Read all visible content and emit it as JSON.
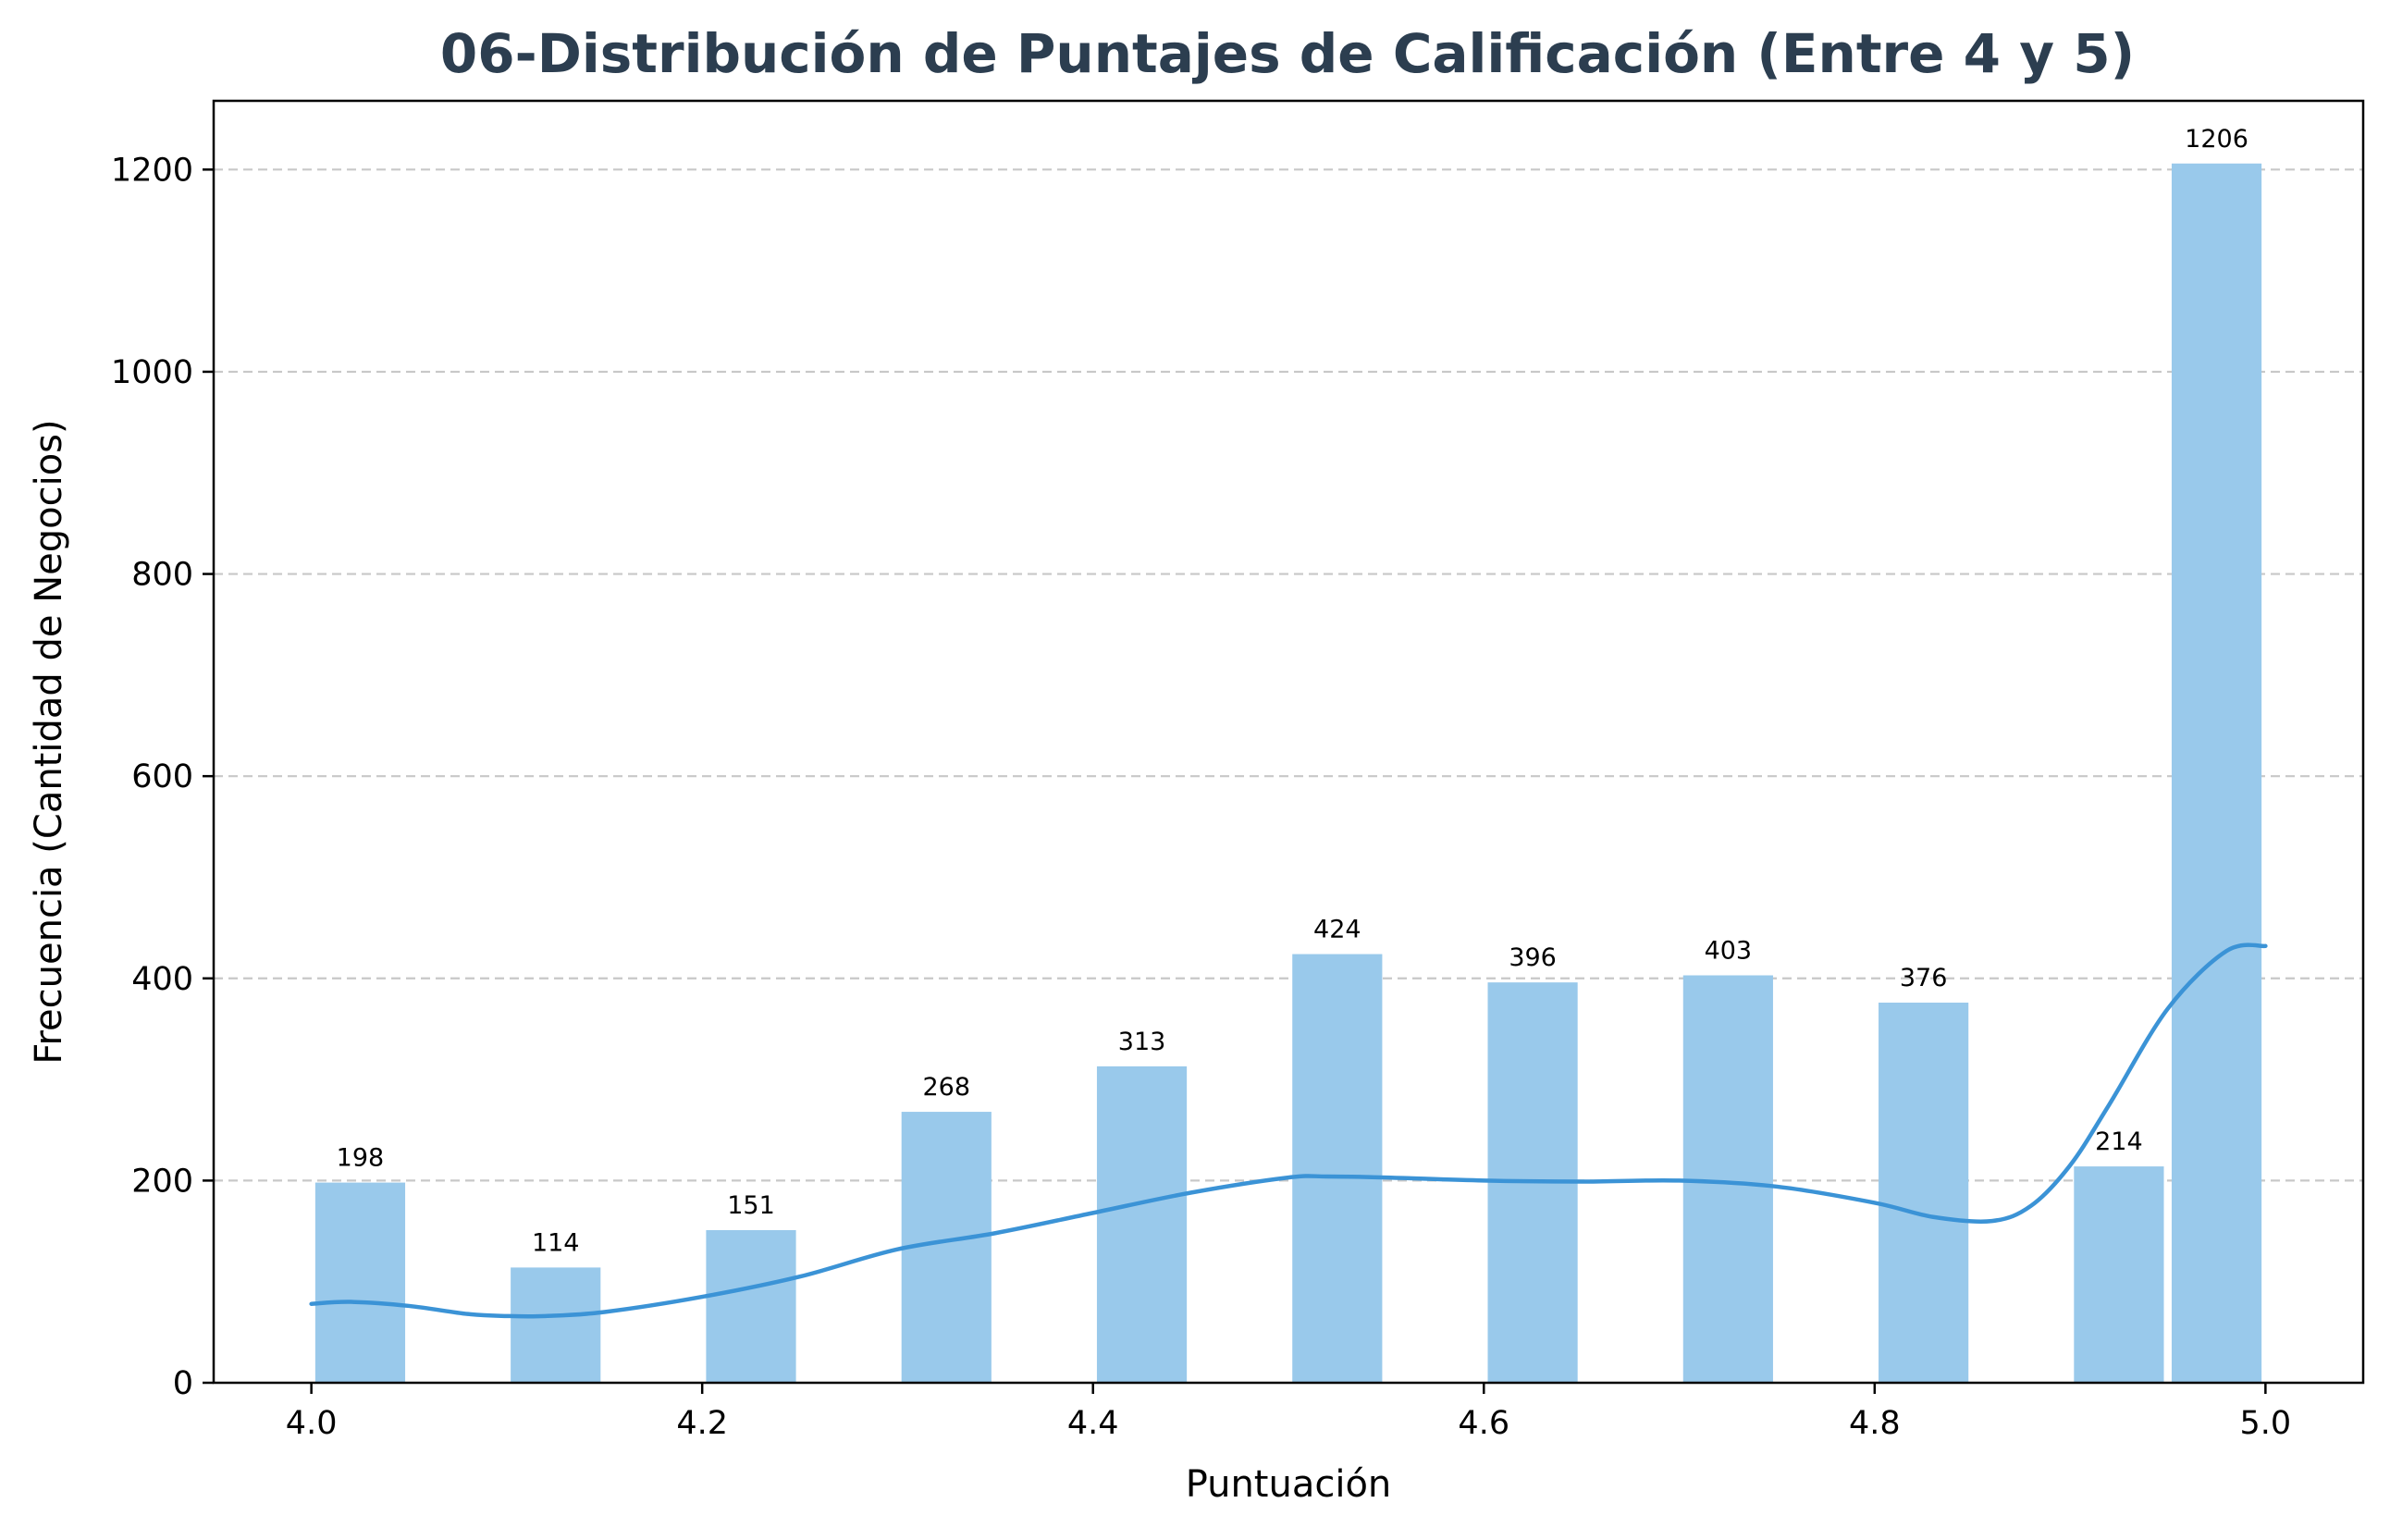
{
  "chart_data": {
    "type": "bar",
    "title": "06-Distribución de Puntajes de Calificación (Entre 4 y 5)",
    "xlabel": "Puntuación",
    "ylabel": "Frecuencia (Cantidad de Negocios)",
    "xlim": [
      3.95,
      5.05
    ],
    "ylim": [
      0,
      1268
    ],
    "xticks": [
      4.0,
      4.2,
      4.4,
      4.6,
      4.8,
      5.0
    ],
    "xtick_labels": [
      "4.0",
      "4.2",
      "4.4",
      "4.6",
      "4.8",
      "5.0"
    ],
    "yticks": [
      0,
      200,
      400,
      600,
      800,
      1000,
      1200
    ],
    "ytick_labels": [
      "0",
      "200",
      "400",
      "600",
      "800",
      "1000",
      "1200"
    ],
    "grid": "y-dashed",
    "bars": [
      {
        "x0": 4.002,
        "x1": 4.048,
        "value": 198,
        "label": "198"
      },
      {
        "x0": 4.102,
        "x1": 4.148,
        "value": 114,
        "label": "114"
      },
      {
        "x0": 4.202,
        "x1": 4.248,
        "value": 151,
        "label": "151"
      },
      {
        "x0": 4.302,
        "x1": 4.348,
        "value": 268,
        "label": "268"
      },
      {
        "x0": 4.402,
        "x1": 4.448,
        "value": 313,
        "label": "313"
      },
      {
        "x0": 4.502,
        "x1": 4.548,
        "value": 424,
        "label": "424"
      },
      {
        "x0": 4.602,
        "x1": 4.648,
        "value": 396,
        "label": "396"
      },
      {
        "x0": 4.702,
        "x1": 4.748,
        "value": 403,
        "label": "403"
      },
      {
        "x0": 4.802,
        "x1": 4.848,
        "value": 376,
        "label": "376"
      },
      {
        "x0": 4.902,
        "x1": 4.948,
        "value": 214,
        "label": "214"
      },
      {
        "x0": 4.952,
        "x1": 4.998,
        "value": 1206,
        "label": "1206"
      }
    ],
    "kde": {
      "x": [
        4.0,
        4.02,
        4.05,
        4.08,
        4.1,
        4.12,
        4.15,
        4.2,
        4.25,
        4.3,
        4.35,
        4.4,
        4.45,
        4.5,
        4.52,
        4.55,
        4.6,
        4.65,
        4.7,
        4.75,
        4.8,
        4.83,
        4.86,
        4.88,
        4.9,
        4.92,
        4.95,
        4.98,
        5.0
      ],
      "y": [
        78,
        80,
        76,
        68,
        66,
        66,
        70,
        85,
        105,
        132,
        148,
        168,
        188,
        203,
        204,
        203,
        200,
        199,
        200,
        194,
        178,
        164,
        160,
        175,
        215,
        275,
        370,
        427,
        432
      ]
    },
    "colors": {
      "bar": "#99c9eb",
      "kde_line": "#3b93d6",
      "title": "#2c3e50",
      "grid": "#c8c8c8"
    }
  }
}
